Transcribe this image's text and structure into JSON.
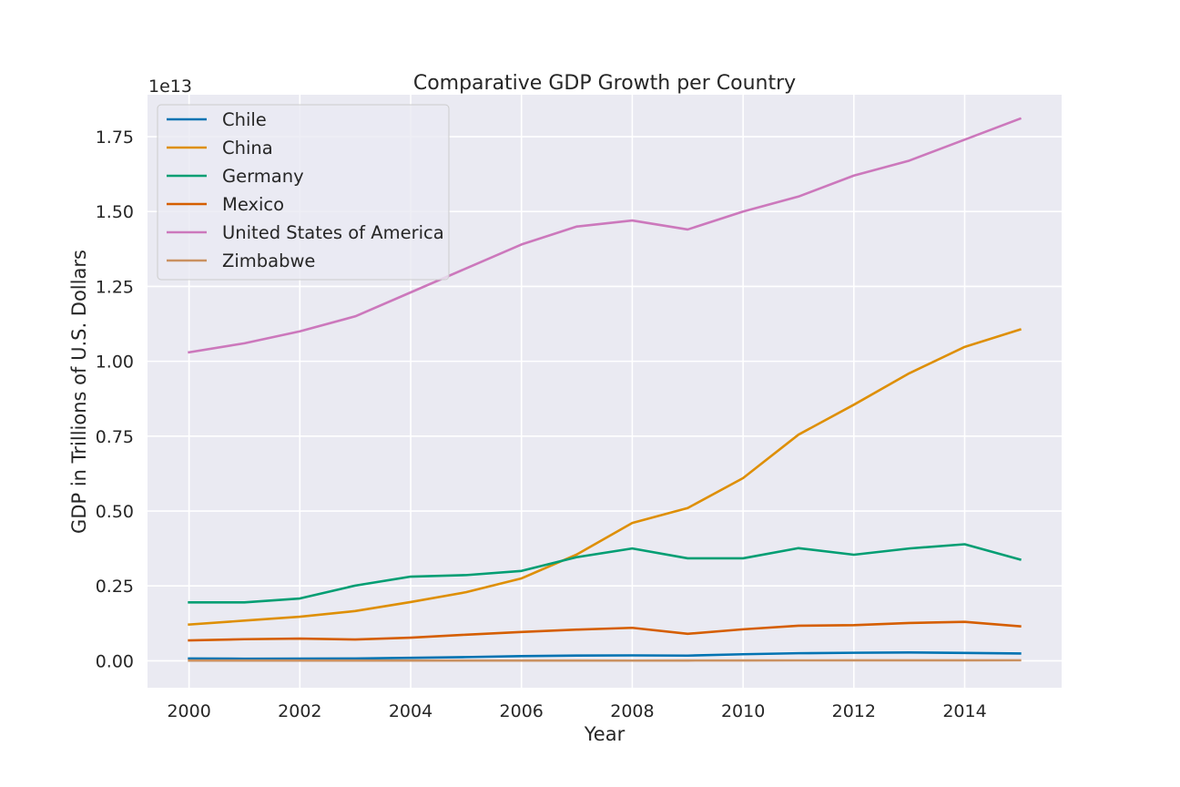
{
  "chart_data": {
    "type": "line",
    "title": "Comparative GDP Growth per Country",
    "xlabel": "Year",
    "ylabel": "GDP in Trillions of U.S. Dollars",
    "y_offset_label": "1e13",
    "y_scale_factor": 10000000000000.0,
    "xlim": [
      1999.25,
      2015.75
    ],
    "ylim": [
      -0.09,
      1.89
    ],
    "x_ticks": [
      2000,
      2002,
      2004,
      2006,
      2008,
      2010,
      2012,
      2014
    ],
    "x_tick_labels": [
      "2000",
      "2002",
      "2004",
      "2006",
      "2008",
      "2010",
      "2012",
      "2014"
    ],
    "y_ticks": [
      0.0,
      0.25,
      0.5,
      0.75,
      1.0,
      1.25,
      1.5,
      1.75
    ],
    "y_tick_labels": [
      "0.00",
      "0.25",
      "0.50",
      "0.75",
      "1.00",
      "1.25",
      "1.50",
      "1.75"
    ],
    "grid": true,
    "legend_position": "top-left",
    "background_color": "#eaeaf2",
    "x": [
      2000,
      2001,
      2002,
      2003,
      2004,
      2005,
      2006,
      2007,
      2008,
      2009,
      2010,
      2011,
      2012,
      2013,
      2014,
      2015
    ],
    "series": [
      {
        "name": "Chile",
        "color": "#0173b2",
        "values": [
          0.0077,
          0.0069,
          0.007,
          0.0075,
          0.0099,
          0.0123,
          0.0155,
          0.0173,
          0.018,
          0.0172,
          0.0218,
          0.0252,
          0.0267,
          0.0278,
          0.026,
          0.0243
        ]
      },
      {
        "name": "China",
        "color": "#de8f05",
        "values": [
          0.121,
          0.134,
          0.147,
          0.166,
          0.196,
          0.229,
          0.275,
          0.355,
          0.46,
          0.51,
          0.61,
          0.755,
          0.855,
          0.96,
          1.048,
          1.106
        ]
      },
      {
        "name": "Germany",
        "color": "#029e73",
        "values": [
          0.195,
          0.195,
          0.208,
          0.251,
          0.281,
          0.286,
          0.3,
          0.346,
          0.375,
          0.342,
          0.342,
          0.376,
          0.354,
          0.375,
          0.389,
          0.338
        ]
      },
      {
        "name": "Mexico",
        "color": "#d55e00",
        "values": [
          0.068,
          0.072,
          0.074,
          0.071,
          0.077,
          0.087,
          0.096,
          0.104,
          0.11,
          0.09,
          0.105,
          0.117,
          0.119,
          0.126,
          0.13,
          0.115
        ]
      },
      {
        "name": "United States of America",
        "color": "#cc78bc",
        "values": [
          1.03,
          1.06,
          1.1,
          1.15,
          1.23,
          1.31,
          1.39,
          1.45,
          1.47,
          1.44,
          1.5,
          1.55,
          1.62,
          1.67,
          1.74,
          1.81
        ]
      },
      {
        "name": "Zimbabwe",
        "color": "#ca9161",
        "values": [
          0.00067,
          0.00068,
          0.00063,
          0.00057,
          0.00059,
          0.00058,
          0.00054,
          0.00053,
          0.00044,
          0.00081,
          0.00096,
          0.00121,
          0.0014,
          0.0015,
          0.00156,
          0.0016
        ]
      }
    ]
  }
}
